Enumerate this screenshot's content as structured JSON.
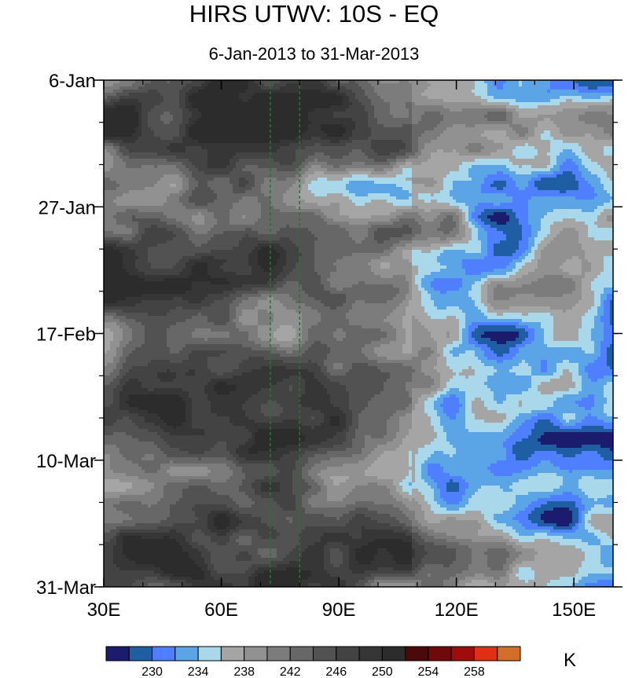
{
  "chart_data": {
    "type": "heatmap",
    "title": "HIRS UTWV: 10S - EQ",
    "subtitle": "6-Jan-2013 to 31-Mar-2013",
    "x_ticks": [
      {
        "value": 30,
        "label": "30E"
      },
      {
        "value": 60,
        "label": "60E"
      },
      {
        "value": 90,
        "label": "90E"
      },
      {
        "value": 120,
        "label": "120E"
      },
      {
        "value": 150,
        "label": "150E"
      }
    ],
    "xlim": [
      30,
      160
    ],
    "y_ticks": [
      {
        "value": 0,
        "label": "6-Jan"
      },
      {
        "value": 21,
        "label": "27-Jan"
      },
      {
        "value": 42,
        "label": "17-Feb"
      },
      {
        "value": 63,
        "label": "10-Mar"
      },
      {
        "value": 84,
        "label": "31-Mar"
      }
    ],
    "ylim_days": [
      0,
      84
    ],
    "reference_lines_lon": [
      72.5,
      80
    ],
    "colorbar": {
      "units": "K",
      "labeled_levels": [
        "230",
        "234",
        "238",
        "242",
        "246",
        "250",
        "254",
        "258"
      ],
      "colors": [
        "#1c1c6e",
        "#1f5ea3",
        "#4f7fff",
        "#5ba4e6",
        "#a8d8ea",
        "#a5a5a5",
        "#919191",
        "#7c7c7c",
        "#676767",
        "#525252",
        "#434343",
        "#363636",
        "#2c2c2c",
        "#4a0a0a",
        "#6e0a0a",
        "#9e0c0c",
        "#e02f14",
        "#d26d2a"
      ]
    },
    "field_description": "Contour-filled brightness temperature: warmer/darker grey (242-252 K) over 30E-100E, colder blue tones (228-240 K) east of ~100E, cold tongue propagating eastward in time."
  }
}
